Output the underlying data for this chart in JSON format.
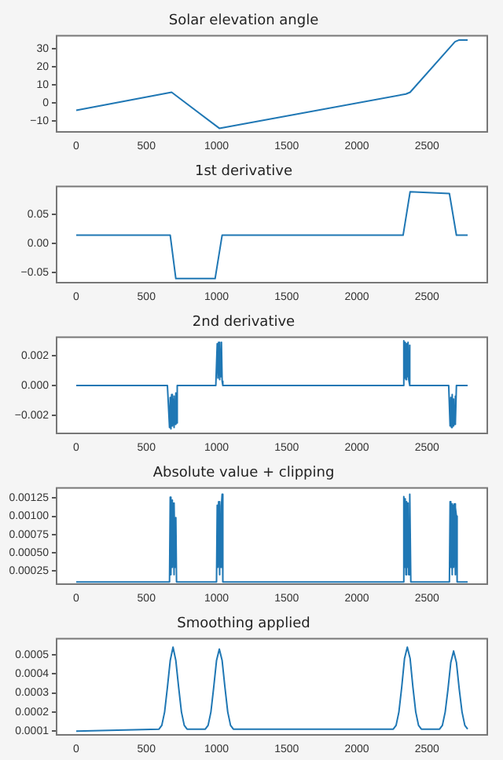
{
  "chart_data": [
    {
      "type": "line",
      "title": "Solar elevation angle",
      "xlim": [
        -140,
        2930
      ],
      "xticks": [
        0,
        500,
        1000,
        1500,
        2000,
        2500
      ],
      "ylim": [
        -16,
        37.3
      ],
      "yticks": [
        {
          "value": -10,
          "label": "−10"
        },
        0,
        10,
        20,
        30
      ],
      "grid": false,
      "legend": false,
      "series": [
        {
          "color": "#1f77b4",
          "x": [
            0,
            680,
            1020,
            2350,
            2380,
            2700,
            2730,
            2790
          ],
          "values": [
            -4,
            6,
            -14,
            5,
            6,
            34,
            35,
            35
          ]
        }
      ]
    },
    {
      "type": "line",
      "title": "1st derivative",
      "xlim": [
        -140,
        2930
      ],
      "xticks": [
        0,
        500,
        1000,
        1500,
        2000,
        2500
      ],
      "ylim": [
        -0.068,
        0.098
      ],
      "yticks": [
        {
          "value": -0.05,
          "label": "−0.05"
        },
        {
          "value": 0,
          "label": "0.00"
        },
        0.05
      ],
      "grid": false,
      "legend": false,
      "series": [
        {
          "color": "#1f77b4",
          "x": [
            0,
            670,
            710,
            990,
            1040,
            2330,
            2380,
            2660,
            2710,
            2790
          ],
          "values": [
            0.014,
            0.014,
            -0.061,
            -0.061,
            0.014,
            0.014,
            0.089,
            0.086,
            0.014,
            0.014
          ]
        }
      ]
    },
    {
      "type": "line",
      "title": "2nd derivative",
      "xlim": [
        -140,
        2930
      ],
      "xticks": [
        0,
        500,
        1000,
        1500,
        2000,
        2500
      ],
      "ylim": [
        -0.0032,
        0.00323
      ],
      "yticks": [
        {
          "value": -0.002,
          "label": "−0.002"
        },
        {
          "value": 0,
          "label": "0.000"
        },
        0.002
      ],
      "grid": false,
      "legend": false,
      "series": [
        {
          "color": "#1f77b4",
          "x": [
            0,
            650,
            665,
            670,
            675,
            680,
            685,
            690,
            695,
            700,
            705,
            710,
            715,
            720,
            995,
            1005,
            1010,
            1015,
            1020,
            1025,
            1030,
            1035,
            1040,
            1045,
            2325,
            2335,
            2340,
            2345,
            2350,
            2355,
            2360,
            2365,
            2370,
            2375,
            2380,
            2655,
            2665,
            2670,
            2675,
            2680,
            2685,
            2690,
            2695,
            2700,
            2705,
            2710,
            2790
          ],
          "values": [
            0,
            0,
            -0.0028,
            -0.0008,
            -0.0029,
            -0.0006,
            -0.0027,
            -0.0009,
            -0.0028,
            -0.0007,
            -0.0026,
            -0.0005,
            -0.0025,
            0,
            0,
            0.0028,
            0.0005,
            0.0029,
            0.0004,
            0.0028,
            0.0006,
            0.0029,
            0.0003,
            0,
            0,
            0.003,
            0.0005,
            0.0029,
            0.0004,
            0.0028,
            0.0006,
            0.0029,
            0.0004,
            0.0027,
            0,
            0,
            -0.0027,
            -0.0008,
            -0.0028,
            -0.0006,
            -0.0027,
            -0.0009,
            -0.0026,
            -0.0007,
            -0.0025,
            0,
            0
          ]
        }
      ]
    },
    {
      "type": "line",
      "title": "Absolute value + clipping",
      "xlim": [
        -140,
        2930
      ],
      "xticks": [
        0,
        500,
        1000,
        1500,
        2000,
        2500
      ],
      "ylim": [
        7e-05,
        0.001386
      ],
      "yticks": [
        {
          "value": 0.00025,
          "label": "0.00025"
        },
        {
          "value": 0.0005,
          "label": "0.00050"
        },
        {
          "value": 0.00075,
          "label": "0.00075"
        },
        {
          "value": 0.001,
          "label": "0.00100"
        },
        {
          "value": 0.00125,
          "label": "0.00125"
        }
      ],
      "grid": false,
      "legend": false,
      "series": [
        {
          "color": "#1f77b4",
          "x": [
            0,
            665,
            670,
            675,
            680,
            685,
            690,
            695,
            700,
            705,
            710,
            715,
            1000,
            1005,
            1010,
            1015,
            1020,
            1025,
            1030,
            1035,
            1040,
            1045,
            2330,
            2335,
            2340,
            2345,
            2350,
            2355,
            2360,
            2365,
            2370,
            2375,
            2380,
            2385,
            2660,
            2665,
            2670,
            2675,
            2680,
            2685,
            2690,
            2695,
            2700,
            2705,
            2710,
            2715,
            2790
          ],
          "values": [
            0.0001,
            0.0001,
            0.00126,
            0.0002,
            0.00122,
            0.0003,
            0.00118,
            0.0002,
            0.00117,
            0.0003,
            0.00098,
            0.0001,
            0.0001,
            0.00115,
            0.0003,
            0.0012,
            0.0002,
            0.00118,
            0.0003,
            0.00114,
            0.0013,
            0.0001,
            0.0001,
            0.00127,
            0.0003,
            0.00124,
            0.0002,
            0.0012,
            0.0003,
            0.00118,
            0.0002,
            0.0012,
            0.0013,
            0.0001,
            0.0001,
            0.0012,
            0.0003,
            0.00117,
            0.0002,
            0.00115,
            0.0003,
            0.00117,
            0.0002,
            0.00112,
            0.001,
            0.0001,
            0.0001
          ]
        }
      ]
    },
    {
      "type": "line",
      "title": "Smoothing applied",
      "xlim": [
        -140,
        2930
      ],
      "xticks": [
        0,
        500,
        1000,
        1500,
        2000,
        2500
      ],
      "ylim": [
        8e-05,
        0.000584
      ],
      "yticks": [
        0.0001,
        0.0002,
        0.0003,
        0.0004,
        0.0005
      ],
      "grid": false,
      "legend": false,
      "series": [
        {
          "color": "#1f77b4",
          "x": [
            0,
            590,
            610,
            630,
            650,
            670,
            690,
            710,
            730,
            750,
            770,
            790,
            920,
            940,
            960,
            980,
            1000,
            1020,
            1040,
            1060,
            1080,
            1100,
            1120,
            2260,
            2280,
            2300,
            2320,
            2340,
            2360,
            2380,
            2400,
            2420,
            2440,
            2460,
            2590,
            2610,
            2630,
            2650,
            2670,
            2690,
            2710,
            2730,
            2750,
            2770,
            2790
          ],
          "values": [
            0.0001,
            0.00011,
            0.00013,
            0.0002,
            0.00033,
            0.00047,
            0.00054,
            0.00047,
            0.00033,
            0.0002,
            0.00013,
            0.00011,
            0.00011,
            0.00013,
            0.0002,
            0.00033,
            0.00047,
            0.00053,
            0.00047,
            0.00033,
            0.0002,
            0.00013,
            0.00011,
            0.00011,
            0.00013,
            0.0002,
            0.00033,
            0.00048,
            0.00054,
            0.00048,
            0.00033,
            0.0002,
            0.00013,
            0.00011,
            0.00011,
            0.00013,
            0.0002,
            0.00032,
            0.00046,
            0.00052,
            0.00046,
            0.00032,
            0.0002,
            0.00013,
            0.00011
          ]
        }
      ]
    }
  ]
}
